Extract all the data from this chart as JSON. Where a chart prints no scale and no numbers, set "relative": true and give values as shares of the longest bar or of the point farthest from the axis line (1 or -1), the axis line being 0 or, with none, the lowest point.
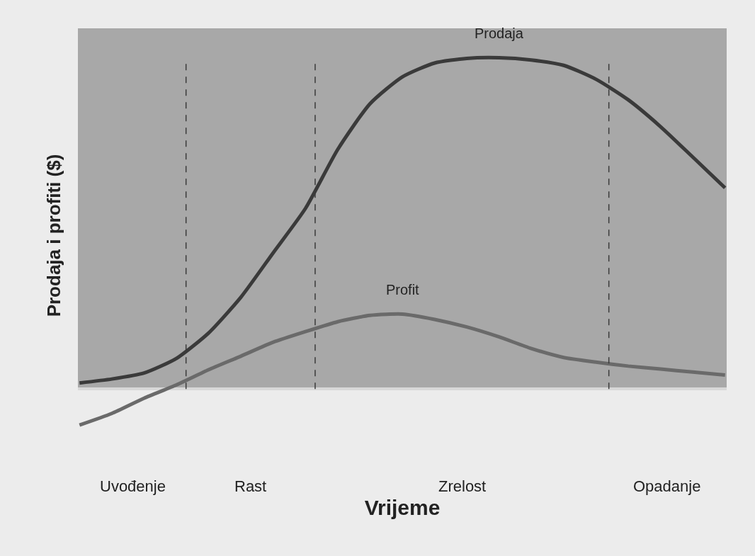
{
  "chart_data": {
    "type": "line",
    "relative": true,
    "xlabel": "Vrijeme",
    "ylabel": "Prodaja i profiti ($)",
    "categories": [
      null,
      null,
      null,
      null,
      null,
      null,
      null,
      null,
      null,
      null,
      null,
      null,
      null,
      null,
      null,
      null,
      null,
      null,
      null,
      null,
      null
    ],
    "series": [
      {
        "name": "Prodaja",
        "color": "#3a3a3a",
        "values": [
          0.018,
          0.03,
          0.048,
          0.092,
          0.169,
          0.277,
          0.411,
          0.545,
          0.723,
          0.861,
          0.942,
          0.984,
          0.998,
          1,
          0.993,
          0.977,
          0.935,
          0.873,
          0.792,
          0.7,
          0.607
        ]
      },
      {
        "name": "Profit",
        "color": "#6a6a6a",
        "values": [
          -0.109,
          -0.074,
          -0.028,
          0.012,
          0.058,
          0.099,
          0.141,
          0.173,
          0.203,
          0.222,
          0.226,
          0.21,
          0.187,
          0.157,
          0.122,
          0.095,
          0.081,
          0.069,
          0.06,
          0.051,
          0.042
        ]
      }
    ],
    "annotations": [
      "Uvođenje",
      "Rast",
      "Zrelost",
      "Opadanje"
    ],
    "grid": false,
    "legend": false,
    "marker": "none",
    "line_style": "solid"
  }
}
